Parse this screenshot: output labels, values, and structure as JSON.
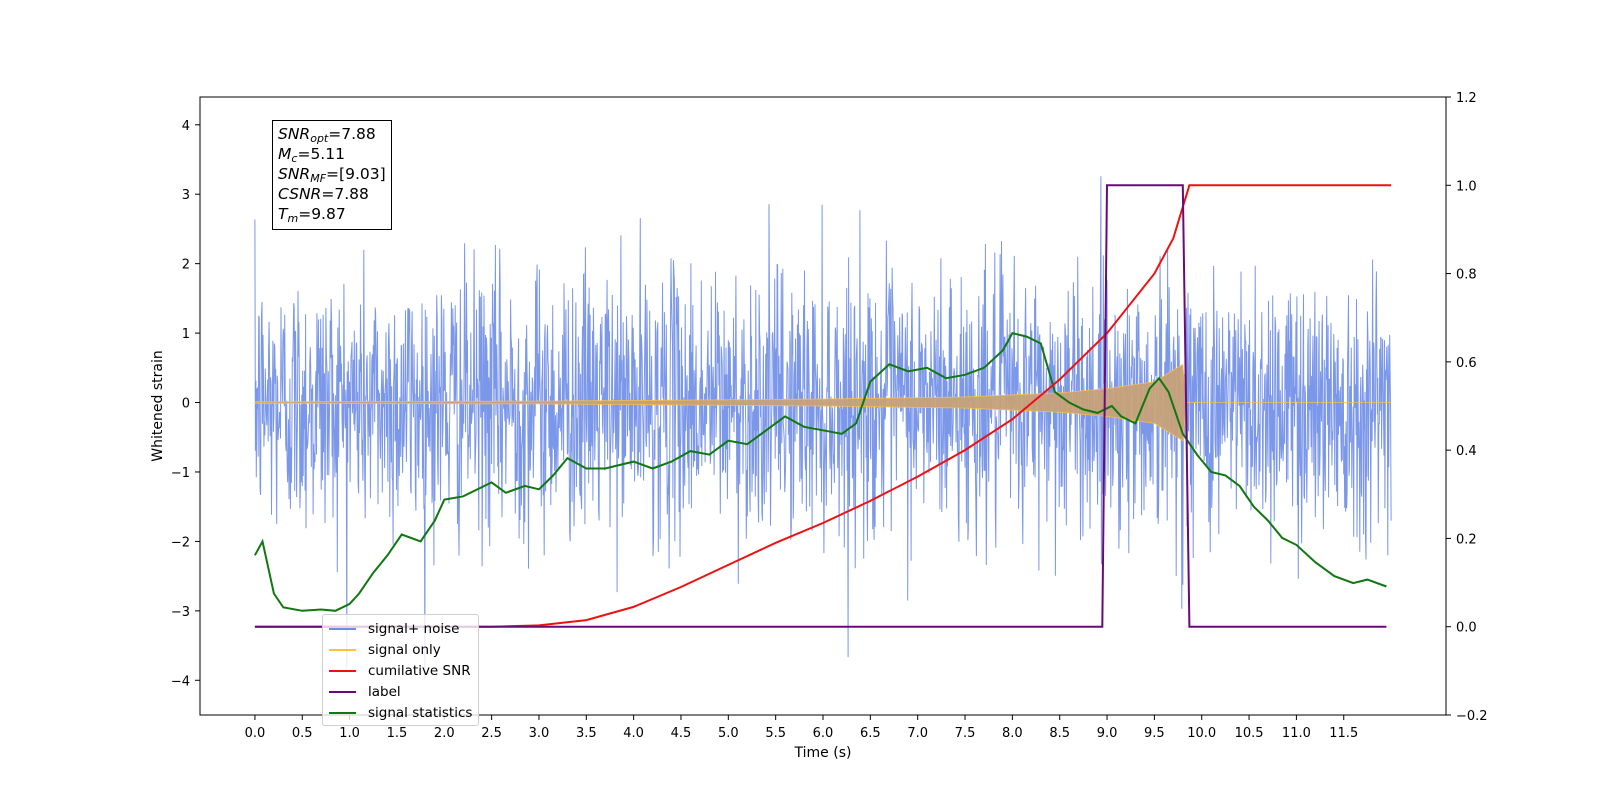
{
  "chart_data": {
    "type": "line",
    "xlabel": "Time (s)",
    "ylabel_left": "Whitened strain",
    "ylim_left": [
      -4.5,
      4.4
    ],
    "ylim_right": [
      -0.2,
      1.2
    ],
    "xlim": [
      -0.58,
      12.58
    ],
    "x_ticks": [
      "0.0",
      "0.5",
      "1.0",
      "1.5",
      "2.0",
      "2.5",
      "3.0",
      "3.5",
      "4.0",
      "4.5",
      "5.0",
      "5.5",
      "6.0",
      "6.5",
      "7.0",
      "7.5",
      "8.0",
      "8.5",
      "9.0",
      "9.5",
      "10.0",
      "10.5",
      "11.0",
      "11.5"
    ],
    "y_left_ticks": [
      "4",
      "3",
      "2",
      "1",
      "0",
      "−1",
      "−2",
      "−3",
      "−4"
    ],
    "y_right_ticks": [
      "1.2",
      "1.0",
      "0.8",
      "0.6",
      "0.4",
      "0.2",
      "0.0",
      "−0.2"
    ],
    "legend_position": "lower-left",
    "series": [
      {
        "name": "signal+ noise",
        "axis": "left",
        "color": "#6d8ce8",
        "description_values": {
          "x_range": [
            0.0,
            12.0
          ],
          "noise_std": 1.0
        }
      },
      {
        "name": "signal only",
        "axis": "left",
        "color": "#ffbf40",
        "envelope": [
          [
            0.0,
            0.01
          ],
          [
            3.0,
            0.02
          ],
          [
            6.0,
            0.05
          ],
          [
            7.5,
            0.08
          ],
          [
            8.5,
            0.14
          ],
          [
            9.0,
            0.2
          ],
          [
            9.5,
            0.3
          ],
          [
            9.8,
            0.55
          ],
          [
            9.84,
            0.0
          ],
          [
            12.0,
            0.0
          ]
        ]
      },
      {
        "name": "cumilative SNR",
        "axis": "right",
        "color": "#ee1111",
        "points": [
          [
            0.0,
            0.0
          ],
          [
            2.5,
            0.0
          ],
          [
            3.0,
            0.003
          ],
          [
            3.5,
            0.015
          ],
          [
            4.0,
            0.045
          ],
          [
            4.5,
            0.09
          ],
          [
            5.0,
            0.14
          ],
          [
            5.5,
            0.19
          ],
          [
            6.0,
            0.235
          ],
          [
            6.5,
            0.285
          ],
          [
            7.0,
            0.34
          ],
          [
            7.5,
            0.4
          ],
          [
            8.0,
            0.47
          ],
          [
            8.5,
            0.56
          ],
          [
            9.0,
            0.665
          ],
          [
            9.5,
            0.8
          ],
          [
            9.7,
            0.88
          ],
          [
            9.87,
            1.0
          ],
          [
            12.0,
            1.0
          ]
        ]
      },
      {
        "name": "label",
        "axis": "right",
        "color": "#6a0a7a",
        "points": [
          [
            0.0,
            0.0
          ],
          [
            8.95,
            0.0
          ],
          [
            9.0,
            1.0
          ],
          [
            9.8,
            1.0
          ],
          [
            9.87,
            0.0
          ],
          [
            11.95,
            0.0
          ]
        ]
      },
      {
        "name": "signal statistics",
        "axis": "left",
        "color": "#117711",
        "points": [
          [
            0.0,
            -2.2
          ],
          [
            0.08,
            -2.0
          ],
          [
            0.2,
            -2.75
          ],
          [
            0.3,
            -2.95
          ],
          [
            0.5,
            -3.0
          ],
          [
            0.7,
            -2.98
          ],
          [
            0.85,
            -3.0
          ],
          [
            1.0,
            -2.9
          ],
          [
            1.1,
            -2.75
          ],
          [
            1.25,
            -2.45
          ],
          [
            1.4,
            -2.2
          ],
          [
            1.55,
            -1.9
          ],
          [
            1.75,
            -2.0
          ],
          [
            1.9,
            -1.7
          ],
          [
            2.0,
            -1.4
          ],
          [
            2.2,
            -1.35
          ],
          [
            2.5,
            -1.15
          ],
          [
            2.65,
            -1.3
          ],
          [
            2.85,
            -1.2
          ],
          [
            3.0,
            -1.25
          ],
          [
            3.15,
            -1.05
          ],
          [
            3.3,
            -0.8
          ],
          [
            3.5,
            -0.95
          ],
          [
            3.7,
            -0.95
          ],
          [
            4.0,
            -0.85
          ],
          [
            4.2,
            -0.95
          ],
          [
            4.4,
            -0.85
          ],
          [
            4.6,
            -0.7
          ],
          [
            4.8,
            -0.75
          ],
          [
            5.0,
            -0.55
          ],
          [
            5.2,
            -0.6
          ],
          [
            5.4,
            -0.4
          ],
          [
            5.6,
            -0.2
          ],
          [
            5.8,
            -0.35
          ],
          [
            6.0,
            -0.4
          ],
          [
            6.2,
            -0.45
          ],
          [
            6.35,
            -0.3
          ],
          [
            6.5,
            0.3
          ],
          [
            6.7,
            0.55
          ],
          [
            6.9,
            0.45
          ],
          [
            7.1,
            0.5
          ],
          [
            7.3,
            0.35
          ],
          [
            7.5,
            0.4
          ],
          [
            7.7,
            0.5
          ],
          [
            7.9,
            0.75
          ],
          [
            8.0,
            1.0
          ],
          [
            8.15,
            0.95
          ],
          [
            8.3,
            0.85
          ],
          [
            8.45,
            0.15
          ],
          [
            8.6,
            0.0
          ],
          [
            8.75,
            -0.1
          ],
          [
            8.9,
            -0.15
          ],
          [
            9.05,
            -0.05
          ],
          [
            9.15,
            -0.2
          ],
          [
            9.3,
            -0.3
          ],
          [
            9.45,
            0.2
          ],
          [
            9.55,
            0.35
          ],
          [
            9.65,
            0.15
          ],
          [
            9.8,
            -0.45
          ],
          [
            9.95,
            -0.75
          ],
          [
            10.1,
            -1.0
          ],
          [
            10.25,
            -1.05
          ],
          [
            10.4,
            -1.2
          ],
          [
            10.55,
            -1.5
          ],
          [
            10.7,
            -1.7
          ],
          [
            10.85,
            -1.95
          ],
          [
            11.0,
            -2.05
          ],
          [
            11.2,
            -2.3
          ],
          [
            11.4,
            -2.5
          ],
          [
            11.6,
            -2.6
          ],
          [
            11.75,
            -2.55
          ],
          [
            11.95,
            -2.65
          ]
        ]
      }
    ],
    "annotation": {
      "snr_opt": "7.88",
      "mc": "5.11",
      "snr_mf": "[9.03]",
      "csnr": "7.88",
      "tm": "9.87"
    }
  }
}
